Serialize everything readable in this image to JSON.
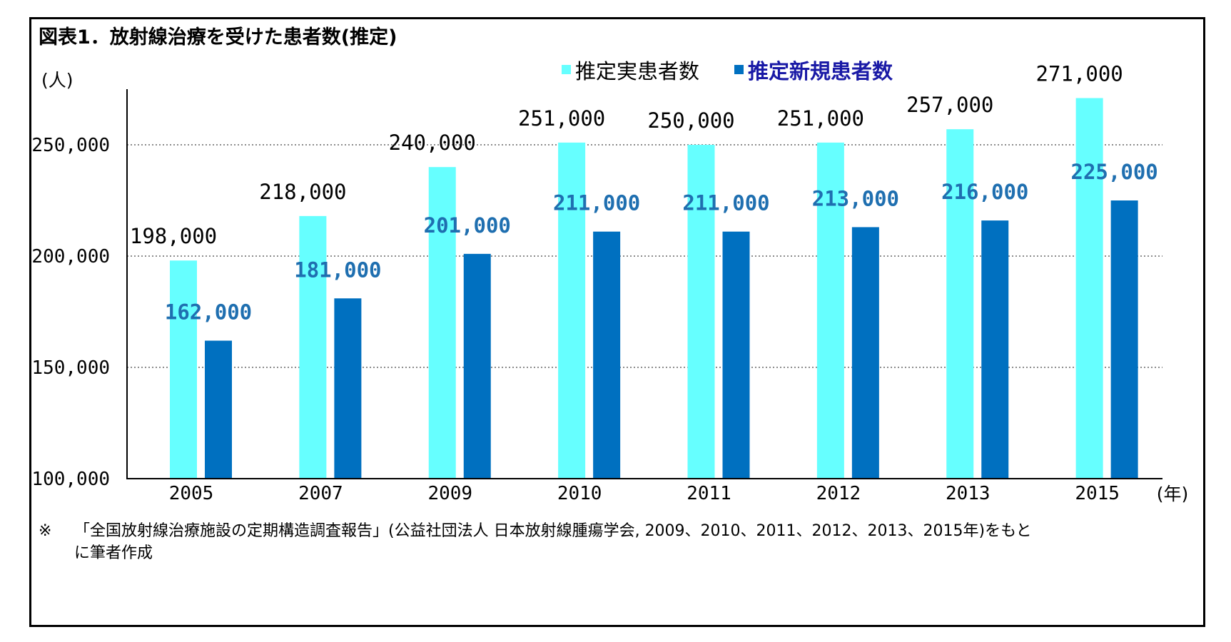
{
  "chart_data": {
    "type": "bar",
    "title": "図表1．放射線治療を受けた患者数(推定)",
    "ylabel": "(人)",
    "xlabel": "(年)",
    "categories": [
      "2005",
      "2007",
      "2009",
      "2010",
      "2011",
      "2012",
      "2013",
      "2015"
    ],
    "series": [
      {
        "name": "推定実患者数",
        "values": [
          198000,
          218000,
          240000,
          251000,
          250000,
          251000,
          257000,
          271000
        ],
        "labels": [
          "198,000",
          "218,000",
          "240,000",
          "251,000",
          "250,000",
          "251,000",
          "257,000",
          "271,000"
        ],
        "color": "#66ffff",
        "label_color": "#000000"
      },
      {
        "name": "推定新規患者数",
        "values": [
          162000,
          181000,
          201000,
          211000,
          211000,
          213000,
          216000,
          225000
        ],
        "labels": [
          "162,000",
          "181,000",
          "201,000",
          "211,000",
          "211,000",
          "213,000",
          "216,000",
          "225,000"
        ],
        "color": "#0070c0",
        "label_color": "#1f6fb0"
      }
    ],
    "ylim": [
      100000,
      275000
    ],
    "yticks": [
      100000,
      150000,
      200000,
      250000
    ],
    "ytick_labels": [
      "100,000",
      "150,000",
      "200,000",
      "250,000"
    ],
    "grid": true,
    "legend_position": "top-right",
    "legend_text_colors": [
      "#000000",
      "#1a1aa6"
    ]
  },
  "note": {
    "mark": "※",
    "line1": "「全国放射線治療施設の定期構造調査報告」(公益社団法人 日本放射線腫瘍学会, 2009、2010、2011、2012、2013、2015年)をもと",
    "line2": "に筆者作成"
  }
}
